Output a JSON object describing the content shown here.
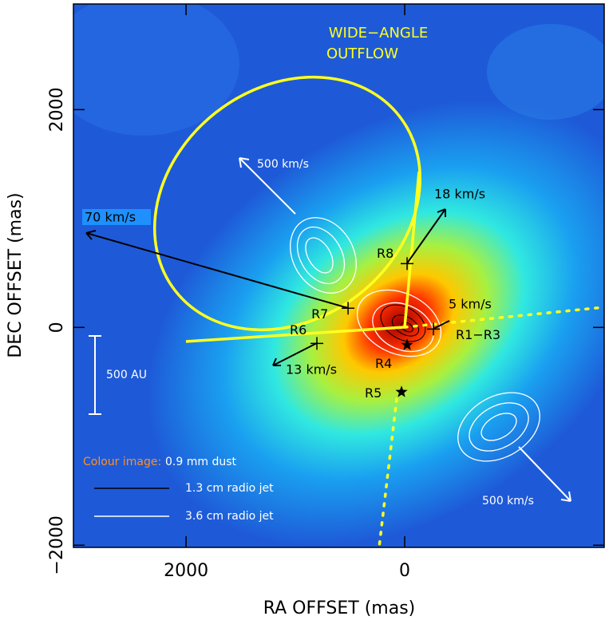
{
  "chart_data": {
    "type": "scatter",
    "title_lines": [
      "WIDE−ANGLE",
      "OUTFLOW"
    ],
    "xlabel": "RA OFFSET (mas)",
    "ylabel": "DEC OFFSET (mas)",
    "xlim": [
      3030,
      -1825
    ],
    "ylim": [
      -2020,
      2970
    ],
    "xticks": [
      2000,
      0
    ],
    "yticks": [
      {
        "value": -2000,
        "label": "−2000"
      },
      0,
      2000
    ],
    "points": [
      {
        "name": "R1−R3",
        "x": -263,
        "y": -15,
        "marker": "cross"
      },
      {
        "name": "R4",
        "x": -22,
        "y": -161,
        "marker": "star"
      },
      {
        "name": "R5",
        "x": 29,
        "y": -593,
        "marker": "star"
      },
      {
        "name": "R6",
        "x": 803,
        "y": -147,
        "marker": "cross"
      },
      {
        "name": "R7",
        "x": 518,
        "y": 176,
        "marker": "cross"
      },
      {
        "name": "R8",
        "x": -22,
        "y": 586,
        "marker": "cross"
      }
    ],
    "velocity_labels": [
      "18 km/s",
      "5 km/s",
      "13 km/s",
      "70 km/s",
      "500 km/s",
      "500 km/s"
    ],
    "scale_bar": "500 AU",
    "legend": {
      "colour_title": "Colour image:",
      "colour_text": "0.9 mm dust",
      "black_line": "1.3 cm radio jet",
      "white_line": "3.6 cm radio jet"
    }
  }
}
